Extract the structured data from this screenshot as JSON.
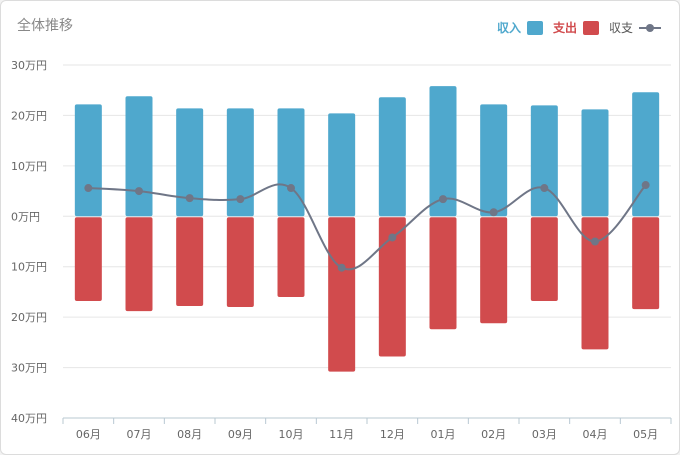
{
  "title": "全体推移",
  "legend": {
    "income": "収入",
    "expense": "支出",
    "balance": "収支"
  },
  "colors": {
    "income": "#4fa8cd",
    "expense": "#d14b4d",
    "balance": "#6f7687",
    "grid": "#e6e6e6",
    "axis": "#b8c8d2"
  },
  "chart_data": {
    "type": "bar",
    "title": "全体推移",
    "categories": [
      "06月",
      "07月",
      "08月",
      "09月",
      "10月",
      "11月",
      "12月",
      "01月",
      "02月",
      "03月",
      "04月",
      "05月"
    ],
    "series": [
      {
        "name": "収入",
        "type": "bar",
        "values": [
          22.2,
          23.8,
          21.4,
          21.4,
          21.4,
          20.4,
          23.6,
          25.8,
          22.2,
          22.0,
          21.2,
          24.6
        ]
      },
      {
        "name": "支出",
        "type": "bar",
        "values": [
          -16.8,
          -18.8,
          -17.8,
          -18.0,
          -16.0,
          -30.8,
          -27.8,
          -22.4,
          -21.2,
          -16.8,
          -26.4,
          -18.4
        ]
      },
      {
        "name": "収支",
        "type": "line",
        "values": [
          5.6,
          5.0,
          3.6,
          3.4,
          5.6,
          -10.2,
          -4.2,
          3.4,
          0.8,
          5.6,
          -5.0,
          6.2
        ]
      }
    ],
    "yticks": [
      "30万円",
      "20万円",
      "10万円",
      "0万円",
      "10万円",
      "20万円",
      "30万円",
      "40万円"
    ],
    "ylim": [
      -40,
      30
    ],
    "grid": true,
    "legend_position": "top-right"
  }
}
